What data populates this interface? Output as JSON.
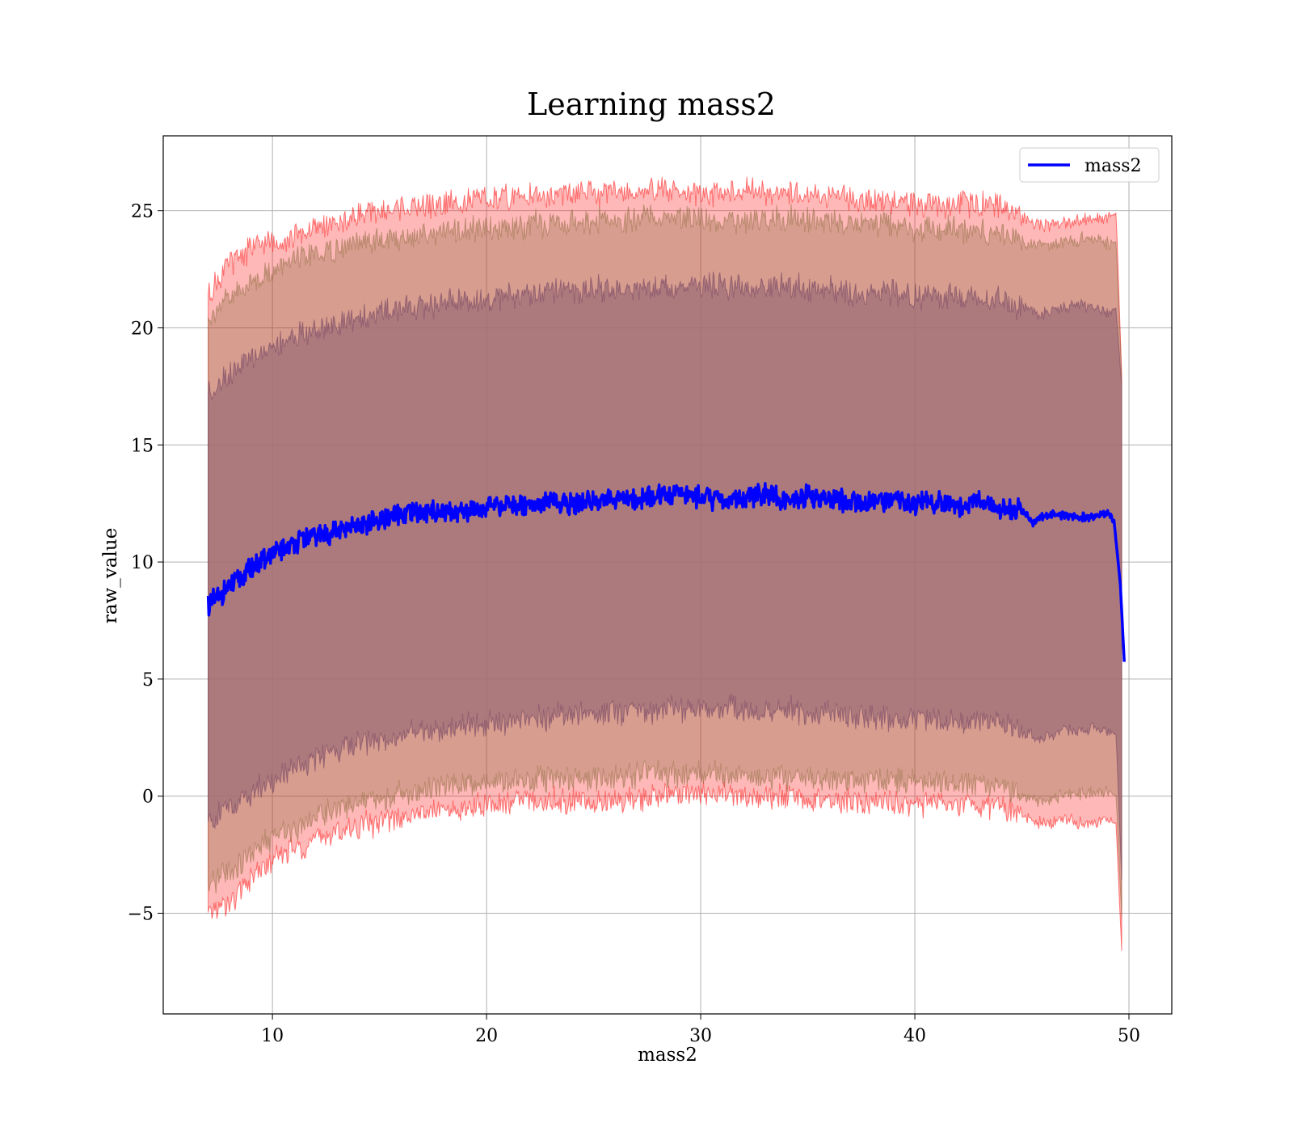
{
  "chart_data": {
    "type": "line",
    "title": "Learning mass2",
    "xlabel": "mass2",
    "ylabel": "raw_value",
    "xlim": [
      4.9,
      52.0
    ],
    "ylim": [
      -9.3,
      28.2
    ],
    "x_ticks": [
      10,
      20,
      30,
      40,
      50
    ],
    "x_tick_labels": [
      "10",
      "20",
      "30",
      "40",
      "50"
    ],
    "y_ticks": [
      -5,
      0,
      5,
      10,
      15,
      20,
      25
    ],
    "y_tick_labels": [
      "−5",
      "0",
      "5",
      "10",
      "15",
      "20",
      "25"
    ],
    "grid": true,
    "legend_position": "top-right",
    "colors": {
      "line": "#0000ff",
      "outer_band": "#ff0000",
      "middle_band": "#8b6a3e",
      "inner_band": "#6a3a5e",
      "inner_band_fill": "#a07078"
    },
    "series": [
      {
        "name": "mass2",
        "kind": "line",
        "x": [
          7.0,
          7.5,
          8.0,
          8.5,
          9.0,
          9.5,
          10.0,
          10.5,
          11.0,
          12.0,
          13.0,
          14.0,
          15.0,
          16.0,
          17.0,
          18.0,
          19.0,
          20.0,
          21.0,
          22.0,
          23.0,
          24.0,
          25.0,
          26.0,
          27.0,
          28.0,
          29.0,
          30.0,
          31.0,
          32.0,
          33.0,
          34.0,
          35.0,
          36.0,
          37.0,
          38.0,
          39.0,
          40.0,
          41.0,
          42.0,
          43.0,
          44.0,
          45.0,
          45.5,
          46.0,
          47.0,
          48.0,
          49.0,
          49.3,
          49.6,
          49.8
        ],
        "y": [
          8.2,
          8.5,
          8.9,
          9.3,
          9.7,
          10.0,
          10.3,
          10.6,
          10.8,
          11.1,
          11.3,
          11.5,
          11.8,
          12.0,
          12.1,
          12.2,
          12.2,
          12.3,
          12.4,
          12.5,
          12.6,
          12.5,
          12.6,
          12.7,
          12.7,
          12.8,
          12.9,
          12.8,
          12.6,
          12.7,
          12.9,
          12.6,
          12.8,
          12.7,
          12.6,
          12.5,
          12.6,
          12.5,
          12.6,
          12.4,
          12.6,
          12.3,
          12.2,
          11.7,
          12.0,
          12.0,
          11.9,
          12.1,
          11.8,
          9.0,
          5.4
        ]
      },
      {
        "kind": "band",
        "x": [
          7.0,
          8.0,
          9.0,
          10.0,
          11.0,
          12.0,
          14.0,
          16.0,
          18.0,
          20.0,
          22.0,
          24.0,
          26.0,
          28.0,
          30.0,
          32.0,
          34.0,
          36.0,
          38.0,
          40.0,
          42.0,
          44.0,
          45.0,
          46.0,
          47.0,
          48.0,
          49.0,
          49.4,
          49.7
        ],
        "upper": [
          21.5,
          22.8,
          23.4,
          23.6,
          23.9,
          24.2,
          24.8,
          25.1,
          25.3,
          25.5,
          25.6,
          25.7,
          25.8,
          25.9,
          25.8,
          25.8,
          25.8,
          25.6,
          25.5,
          25.3,
          25.2,
          25.3,
          24.7,
          24.4,
          24.5,
          24.6,
          24.7,
          24.9,
          17.0
        ],
        "lower": [
          -5.0,
          -4.6,
          -3.6,
          -2.8,
          -2.2,
          -1.9,
          -1.3,
          -0.9,
          -0.6,
          -0.4,
          -0.2,
          -0.2,
          -0.2,
          0.0,
          0.1,
          0.0,
          -0.1,
          -0.2,
          -0.3,
          -0.4,
          -0.4,
          -0.5,
          -0.9,
          -1.2,
          -1.0,
          -1.2,
          -1.0,
          -1.2,
          -7.4
        ]
      },
      {
        "kind": "band",
        "x": [
          7.0,
          8.0,
          9.0,
          10.0,
          11.0,
          12.0,
          14.0,
          16.0,
          18.0,
          20.0,
          22.0,
          24.0,
          26.0,
          28.0,
          30.0,
          32.0,
          34.0,
          36.0,
          38.0,
          40.0,
          42.0,
          44.0,
          45.0,
          46.0,
          47.0,
          48.0,
          49.0,
          49.4,
          49.7
        ],
        "upper": [
          20.5,
          21.2,
          22.0,
          22.4,
          22.9,
          23.1,
          23.6,
          23.9,
          24.1,
          24.2,
          24.4,
          24.5,
          24.6,
          24.7,
          24.7,
          24.6,
          24.7,
          24.5,
          24.4,
          24.3,
          24.2,
          24.1,
          23.7,
          23.5,
          23.7,
          23.8,
          23.6,
          23.7,
          17.0
        ],
        "lower": [
          -4.0,
          -3.2,
          -2.5,
          -1.8,
          -1.3,
          -0.9,
          -0.3,
          0.1,
          0.4,
          0.6,
          0.7,
          0.8,
          0.8,
          0.9,
          1.0,
          0.9,
          0.8,
          0.7,
          0.7,
          0.6,
          0.5,
          0.4,
          0.1,
          -0.3,
          0.1,
          0.1,
          0.2,
          0.0,
          -6.0
        ]
      },
      {
        "kind": "band",
        "x": [
          7.0,
          8.0,
          9.0,
          10.0,
          11.0,
          12.0,
          14.0,
          16.0,
          18.0,
          20.0,
          22.0,
          24.0,
          26.0,
          28.0,
          30.0,
          32.0,
          34.0,
          36.0,
          38.0,
          40.0,
          42.0,
          44.0,
          45.0,
          46.0,
          47.0,
          48.0,
          49.0,
          49.4,
          49.7
        ],
        "upper": [
          17.3,
          18.0,
          18.7,
          19.2,
          19.6,
          19.9,
          20.4,
          20.8,
          21.1,
          21.2,
          21.4,
          21.6,
          21.7,
          21.8,
          21.8,
          21.7,
          21.8,
          21.6,
          21.5,
          21.4,
          21.3,
          21.2,
          20.8,
          20.6,
          20.9,
          20.9,
          20.7,
          20.8,
          17.0
        ],
        "lower": [
          -1.0,
          -0.5,
          0.1,
          0.7,
          1.2,
          1.6,
          2.2,
          2.6,
          2.9,
          3.1,
          3.3,
          3.5,
          3.6,
          3.7,
          3.8,
          3.7,
          3.7,
          3.5,
          3.4,
          3.3,
          3.2,
          3.1,
          2.7,
          2.5,
          2.8,
          2.8,
          2.9,
          2.6,
          -4.5
        ]
      }
    ]
  }
}
